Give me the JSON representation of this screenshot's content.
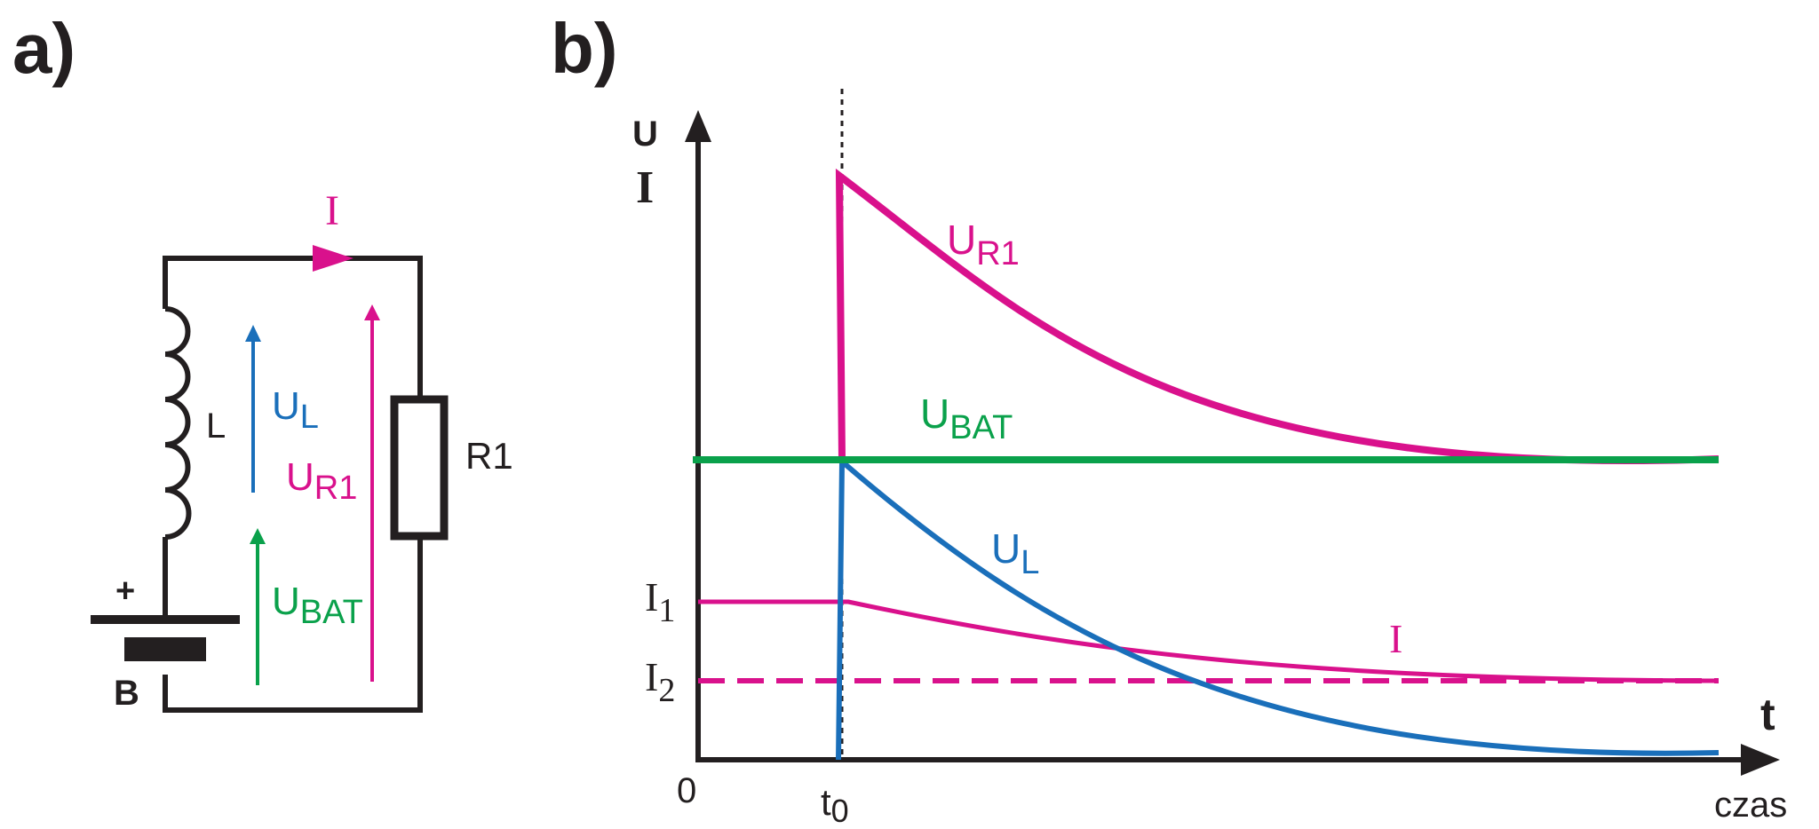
{
  "panel_a": {
    "label": "a)",
    "current_label": "I",
    "inductor_label": "L",
    "resistor_label": "R1",
    "battery_label": "B",
    "battery_plus": "+",
    "ul": {
      "main": "U",
      "sub": "L"
    },
    "ur1": {
      "main": "U",
      "sub": "R1"
    },
    "ubat": {
      "main": "U",
      "sub": "BAT"
    }
  },
  "panel_b": {
    "label": "b)",
    "y_axis_label_top": "U",
    "y_axis_label_bottom": "I",
    "x_axis_label": "t",
    "x_axis_caption": "czas",
    "origin_label": "0",
    "t0": {
      "main": "t",
      "sub": "0"
    },
    "i1": {
      "main": "I",
      "sub": "1"
    },
    "i2": {
      "main": "I",
      "sub": "2"
    },
    "ur1_label": {
      "main": "U",
      "sub": "R1"
    },
    "ubat_label": {
      "main": "U",
      "sub": "BAT"
    },
    "ul_label": {
      "main": "U",
      "sub": "L"
    },
    "i_label": "I"
  },
  "colors": {
    "magenta": "#d9118c",
    "blue": "#1a6fba",
    "green": "#0aa14b",
    "black": "#231f20"
  }
}
